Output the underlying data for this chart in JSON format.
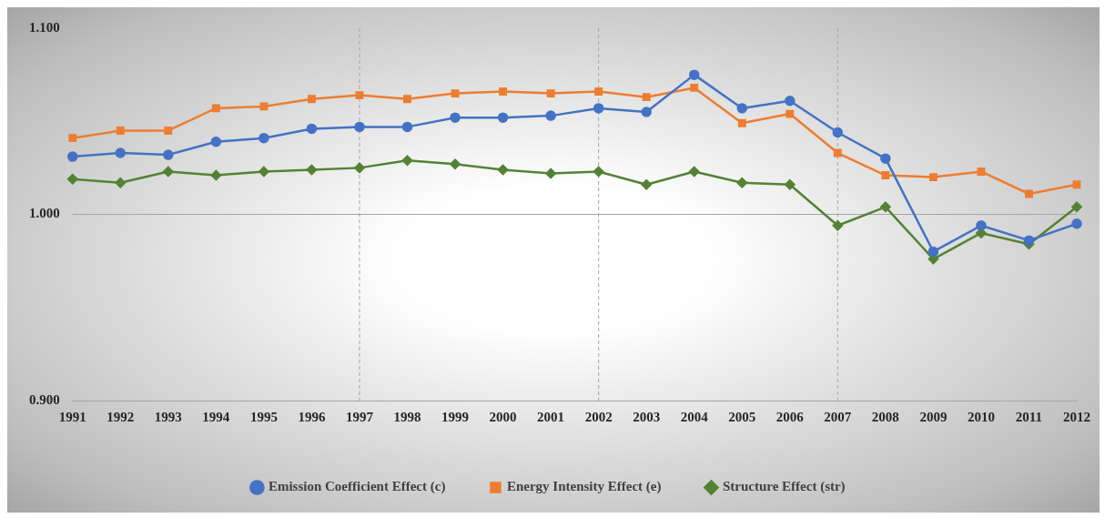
{
  "chart_data": {
    "type": "line",
    "categories": [
      "1991",
      "1992",
      "1993",
      "1994",
      "1995",
      "1996",
      "1997",
      "1998",
      "1999",
      "2000",
      "2001",
      "2002",
      "2003",
      "2004",
      "2005",
      "2006",
      "2007",
      "2008",
      "2009",
      "2010",
      "2011",
      "2012"
    ],
    "series": [
      {
        "name": "Emission Coefficient Effect (c)",
        "color": "#4472c4",
        "marker": "circle",
        "values": [
          1.031,
          1.033,
          1.032,
          1.039,
          1.041,
          1.046,
          1.047,
          1.047,
          1.052,
          1.052,
          1.053,
          1.057,
          1.055,
          1.075,
          1.057,
          1.061,
          1.044,
          1.03,
          0.98,
          0.994,
          0.986,
          0.995
        ]
      },
      {
        "name": "Energy Intensity Effect (e)",
        "color": "#ed7d31",
        "marker": "square",
        "values": [
          1.041,
          1.045,
          1.045,
          1.057,
          1.058,
          1.062,
          1.064,
          1.062,
          1.065,
          1.066,
          1.065,
          1.066,
          1.063,
          1.068,
          1.049,
          1.054,
          1.033,
          1.021,
          1.02,
          1.023,
          1.011,
          1.016
        ]
      },
      {
        "name": "Structure Effect (str)",
        "color": "#548235",
        "marker": "diamond",
        "values": [
          1.019,
          1.017,
          1.023,
          1.021,
          1.023,
          1.024,
          1.025,
          1.029,
          1.027,
          1.024,
          1.022,
          1.023,
          1.016,
          1.023,
          1.017,
          1.016,
          0.994,
          1.004,
          0.976,
          0.99,
          0.984,
          1.004
        ]
      }
    ],
    "ylim": [
      0.9,
      1.1
    ],
    "yticks": [
      {
        "value": 0.9,
        "label": "0.900"
      },
      {
        "value": 1.0,
        "label": "1.000"
      },
      {
        "value": 1.1,
        "label": "1.100"
      }
    ],
    "legend": "bottom",
    "line_style": "solid",
    "ref_lines": [
      {
        "axis": "y",
        "value": 1.0,
        "color": "#a6a6a6",
        "line_style": "solid"
      },
      {
        "axis": "x",
        "value": "1997",
        "color": "#a6a6a6",
        "line_style": "dashed"
      },
      {
        "axis": "x",
        "value": "2002",
        "color": "#a6a6a6",
        "line_style": "dashed"
      },
      {
        "axis": "x",
        "value": "2007",
        "color": "#a6a6a6",
        "line_style": "dashed"
      }
    ]
  }
}
